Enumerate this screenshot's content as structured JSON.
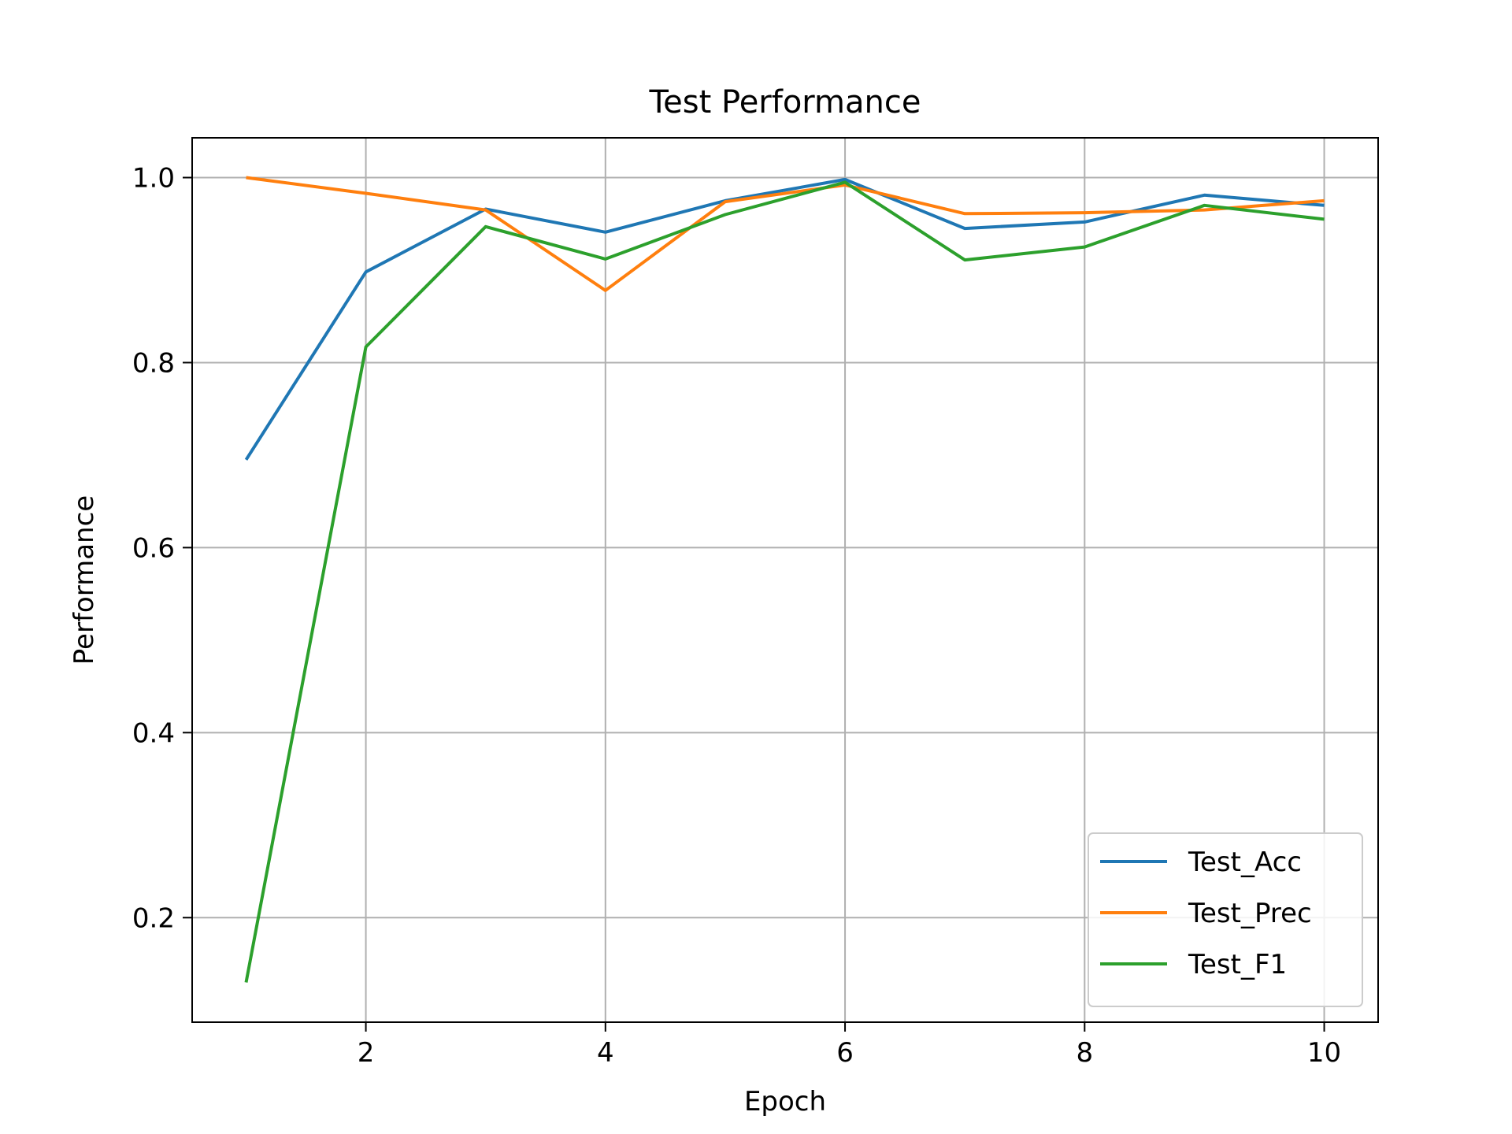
{
  "chart_data": {
    "type": "line",
    "title": "Test Performance",
    "xlabel": "Epoch",
    "ylabel": "Performance",
    "x": [
      1,
      2,
      3,
      4,
      5,
      6,
      7,
      8,
      9,
      10
    ],
    "xlim": [
      0.55,
      10.45
    ],
    "ylim": [
      0.087,
      1.043
    ],
    "xticks": [
      2,
      4,
      6,
      8,
      10
    ],
    "yticks": [
      0.2,
      0.4,
      0.6,
      0.8,
      1.0
    ],
    "xtick_labels": [
      "2",
      "4",
      "6",
      "8",
      "10"
    ],
    "ytick_labels": [
      "0.2",
      "0.4",
      "0.6",
      "0.8",
      "1.0"
    ],
    "grid": true,
    "legend_position": "lower-right",
    "series": [
      {
        "name": "Test_Acc",
        "color": "#1f77b4",
        "values": [
          0.695,
          0.898,
          0.966,
          0.941,
          0.975,
          0.998,
          0.945,
          0.952,
          0.981,
          0.97
        ]
      },
      {
        "name": "Test_Prec",
        "color": "#ff7f0e",
        "values": [
          1.0,
          0.983,
          0.965,
          0.878,
          0.974,
          0.992,
          0.961,
          0.962,
          0.965,
          0.975
        ]
      },
      {
        "name": "Test_F1",
        "color": "#2ca02c",
        "values": [
          0.13,
          0.817,
          0.947,
          0.912,
          0.96,
          0.995,
          0.911,
          0.925,
          0.97,
          0.955
        ]
      }
    ]
  }
}
